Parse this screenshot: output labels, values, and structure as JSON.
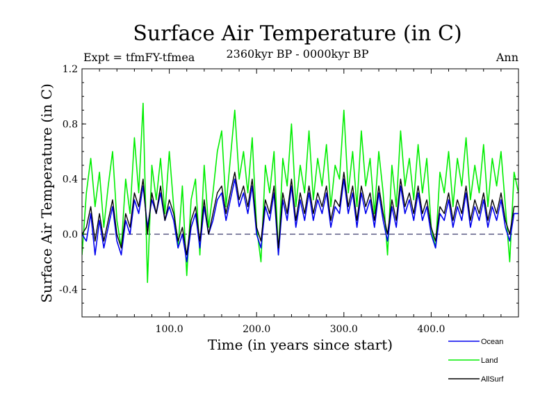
{
  "chart_data": {
    "type": "line",
    "title": "Surface Air Temperature (in C)",
    "subtitle_left": "Expt = tfmFY-tfmea",
    "subtitle_center": "2360kyr BP - 0000kyr BP",
    "subtitle_right": "Ann",
    "xlabel": "Time (in years since start)",
    "ylabel": "Surface Air Temperature (in C)",
    "xlim": [
      0,
      500
    ],
    "ylim": [
      -0.6,
      1.2
    ],
    "xticks": [
      100,
      200,
      300,
      400
    ],
    "xtick_labels": [
      "100.0",
      "200.0",
      "300.0",
      "400.0"
    ],
    "yticks": [
      -0.4,
      0.0,
      0.4,
      0.8,
      1.2
    ],
    "ytick_labels": [
      "-0.4",
      "0.0",
      "0.4",
      "0.8",
      "1.2"
    ],
    "zero_line": 0.0,
    "legend_position": "bottom-right",
    "series": [
      {
        "name": "Land",
        "color": "#00ee00",
        "x": [
          0,
          5,
          10,
          15,
          20,
          25,
          30,
          35,
          40,
          45,
          50,
          55,
          60,
          65,
          70,
          75,
          80,
          85,
          90,
          95,
          100,
          105,
          110,
          115,
          120,
          125,
          130,
          135,
          140,
          145,
          150,
          155,
          160,
          165,
          170,
          175,
          180,
          185,
          190,
          195,
          200,
          205,
          210,
          215,
          220,
          225,
          230,
          235,
          240,
          245,
          250,
          255,
          260,
          265,
          270,
          275,
          280,
          285,
          290,
          295,
          300,
          305,
          310,
          315,
          320,
          325,
          330,
          335,
          340,
          345,
          350,
          355,
          360,
          365,
          370,
          375,
          380,
          385,
          390,
          395,
          400,
          405,
          410,
          415,
          420,
          425,
          430,
          435,
          440,
          445,
          450,
          455,
          460,
          465,
          470,
          475,
          480,
          485,
          490,
          495,
          500
        ],
        "values": [
          -0.15,
          0.3,
          0.55,
          0.2,
          0.45,
          0.05,
          0.35,
          0.6,
          0.1,
          -0.1,
          0.4,
          0.15,
          0.7,
          0.3,
          0.95,
          -0.35,
          0.5,
          0.25,
          0.55,
          0.15,
          0.6,
          0.2,
          -0.1,
          0.35,
          -0.3,
          0.25,
          0.4,
          -0.15,
          0.5,
          0.05,
          0.3,
          0.6,
          0.75,
          0.2,
          0.55,
          0.9,
          0.4,
          0.6,
          0.3,
          0.7,
          0.05,
          -0.2,
          0.5,
          0.3,
          0.6,
          -0.15,
          0.55,
          0.35,
          0.8,
          0.2,
          0.5,
          0.3,
          0.75,
          0.25,
          0.55,
          0.35,
          0.65,
          0.2,
          0.5,
          0.4,
          0.9,
          0.3,
          0.6,
          0.2,
          0.75,
          0.35,
          0.55,
          0.15,
          0.6,
          0.3,
          -0.15,
          0.5,
          0.2,
          0.75,
          0.35,
          0.55,
          0.25,
          0.65,
          0.3,
          0.55,
          0.05,
          -0.1,
          0.45,
          0.3,
          0.6,
          0.2,
          0.55,
          0.35,
          0.7,
          0.25,
          0.5,
          0.3,
          0.65,
          0.2,
          0.55,
          0.35,
          0.6,
          0.2,
          -0.2,
          0.45,
          0.3
        ]
      },
      {
        "name": "Ocean",
        "color": "#0000ee",
        "x": [
          0,
          5,
          10,
          15,
          20,
          25,
          30,
          35,
          40,
          45,
          50,
          55,
          60,
          65,
          70,
          75,
          80,
          85,
          90,
          95,
          100,
          105,
          110,
          115,
          120,
          125,
          130,
          135,
          140,
          145,
          150,
          155,
          160,
          165,
          170,
          175,
          180,
          185,
          190,
          195,
          200,
          205,
          210,
          215,
          220,
          225,
          230,
          235,
          240,
          245,
          250,
          255,
          260,
          265,
          270,
          275,
          280,
          285,
          290,
          295,
          300,
          305,
          310,
          315,
          320,
          325,
          330,
          335,
          340,
          345,
          350,
          355,
          360,
          365,
          370,
          375,
          380,
          385,
          390,
          395,
          400,
          405,
          410,
          415,
          420,
          425,
          430,
          435,
          440,
          445,
          450,
          455,
          460,
          465,
          470,
          475,
          480,
          485,
          490,
          495,
          500
        ],
        "values": [
          0.0,
          -0.05,
          0.15,
          -0.15,
          0.1,
          -0.1,
          0.05,
          0.2,
          -0.05,
          -0.15,
          0.1,
          0.0,
          0.25,
          0.15,
          0.35,
          0.05,
          0.25,
          0.15,
          0.3,
          0.1,
          0.2,
          0.1,
          -0.1,
          0.0,
          -0.2,
          0.05,
          0.15,
          -0.1,
          0.2,
          0.0,
          0.1,
          0.25,
          0.3,
          0.1,
          0.25,
          0.4,
          0.2,
          0.3,
          0.15,
          0.35,
          0.0,
          -0.1,
          0.2,
          0.1,
          0.3,
          -0.15,
          0.25,
          0.1,
          0.35,
          0.05,
          0.25,
          0.1,
          0.3,
          0.1,
          0.25,
          0.15,
          0.3,
          0.05,
          0.2,
          0.15,
          0.4,
          0.15,
          0.3,
          0.05,
          0.3,
          0.15,
          0.25,
          0.05,
          0.3,
          0.1,
          -0.05,
          0.2,
          0.05,
          0.35,
          0.15,
          0.25,
          0.1,
          0.3,
          0.1,
          0.2,
          0.0,
          -0.1,
          0.15,
          0.1,
          0.25,
          0.05,
          0.2,
          0.1,
          0.3,
          0.05,
          0.2,
          0.1,
          0.25,
          0.05,
          0.2,
          0.1,
          0.25,
          0.05,
          -0.05,
          0.15,
          0.15
        ]
      },
      {
        "name": "AllSurf",
        "color": "#000000",
        "x": [
          0,
          5,
          10,
          15,
          20,
          25,
          30,
          35,
          40,
          45,
          50,
          55,
          60,
          65,
          70,
          75,
          80,
          85,
          90,
          95,
          100,
          105,
          110,
          115,
          120,
          125,
          130,
          135,
          140,
          145,
          150,
          155,
          160,
          165,
          170,
          175,
          180,
          185,
          190,
          195,
          200,
          205,
          210,
          215,
          220,
          225,
          230,
          235,
          240,
          245,
          250,
          255,
          260,
          265,
          270,
          275,
          280,
          285,
          290,
          295,
          300,
          305,
          310,
          315,
          320,
          325,
          330,
          335,
          340,
          345,
          350,
          355,
          360,
          365,
          370,
          375,
          380,
          385,
          390,
          395,
          400,
          405,
          410,
          415,
          420,
          425,
          430,
          435,
          440,
          445,
          450,
          455,
          460,
          465,
          470,
          475,
          480,
          485,
          490,
          495,
          500
        ],
        "values": [
          0.0,
          0.05,
          0.2,
          -0.05,
          0.15,
          -0.05,
          0.1,
          0.25,
          0.0,
          -0.1,
          0.15,
          0.05,
          0.3,
          0.2,
          0.4,
          0.0,
          0.3,
          0.15,
          0.35,
          0.1,
          0.25,
          0.15,
          -0.05,
          0.05,
          -0.15,
          0.1,
          0.2,
          -0.05,
          0.25,
          0.0,
          0.15,
          0.3,
          0.35,
          0.15,
          0.3,
          0.45,
          0.25,
          0.35,
          0.2,
          0.4,
          0.05,
          -0.05,
          0.25,
          0.15,
          0.35,
          -0.1,
          0.3,
          0.15,
          0.4,
          0.1,
          0.3,
          0.15,
          0.35,
          0.15,
          0.3,
          0.2,
          0.35,
          0.1,
          0.25,
          0.2,
          0.45,
          0.2,
          0.35,
          0.1,
          0.35,
          0.2,
          0.3,
          0.1,
          0.35,
          0.15,
          0.0,
          0.25,
          0.1,
          0.4,
          0.2,
          0.3,
          0.15,
          0.35,
          0.15,
          0.25,
          0.05,
          -0.05,
          0.2,
          0.15,
          0.3,
          0.1,
          0.25,
          0.15,
          0.35,
          0.1,
          0.25,
          0.15,
          0.3,
          0.1,
          0.25,
          0.15,
          0.3,
          0.1,
          0.0,
          0.2,
          0.2
        ]
      }
    ],
    "legend_order": [
      "Ocean",
      "Land",
      "AllSurf"
    ]
  }
}
